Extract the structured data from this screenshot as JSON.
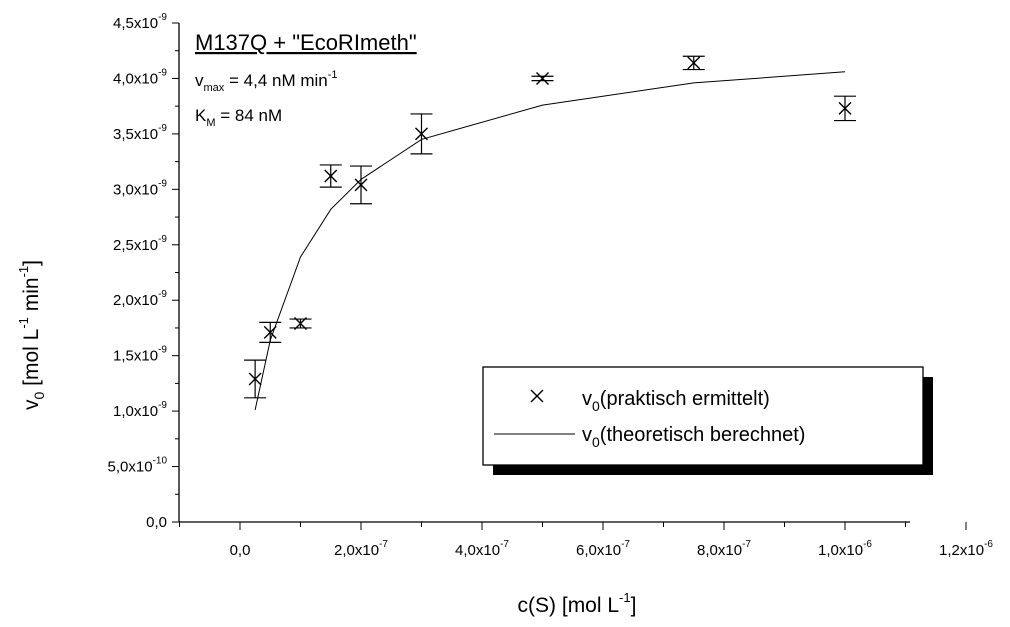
{
  "chart_data": {
    "type": "scatter",
    "title": "",
    "xlabel": {
      "main": "c(S) [mol L",
      "sup": "-1",
      "end": "]"
    },
    "ylabel": {
      "main": "v",
      "sub": "0",
      "mid1": " [mol L",
      "sup1": "-1",
      "mid2": " min",
      "sup2": "-1",
      "end": "]"
    },
    "xlim": [
      -1e-07,
      1.2e-06
    ],
    "ylim": [
      0,
      4.5e-09
    ],
    "x_ticks": [
      {
        "value": 0,
        "mantissa": "0,0",
        "exp": ""
      },
      {
        "value": 2e-07,
        "mantissa": "2,0x10",
        "exp": "-7"
      },
      {
        "value": 4e-07,
        "mantissa": "4,0x10",
        "exp": "-7"
      },
      {
        "value": 6e-07,
        "mantissa": "6,0x10",
        "exp": "-7"
      },
      {
        "value": 8e-07,
        "mantissa": "8,0x10",
        "exp": "-7"
      },
      {
        "value": 1e-06,
        "mantissa": "1,0x10",
        "exp": "-6"
      },
      {
        "value": 1.2e-06,
        "mantissa": "1,2x10",
        "exp": "-6"
      }
    ],
    "y_ticks": [
      {
        "value": 0,
        "mantissa": "0,0",
        "exp": ""
      },
      {
        "value": 5e-10,
        "mantissa": "5,0x10",
        "exp": "-10"
      },
      {
        "value": 1e-09,
        "mantissa": "1,0x10",
        "exp": "-9"
      },
      {
        "value": 1.5e-09,
        "mantissa": "1,5x10",
        "exp": "-9"
      },
      {
        "value": 2e-09,
        "mantissa": "2,0x10",
        "exp": "-9"
      },
      {
        "value": 2.5e-09,
        "mantissa": "2,5x10",
        "exp": "-9"
      },
      {
        "value": 3e-09,
        "mantissa": "3,0x10",
        "exp": "-9"
      },
      {
        "value": 3.5e-09,
        "mantissa": "3,5x10",
        "exp": "-9"
      },
      {
        "value": 4e-09,
        "mantissa": "4,0x10",
        "exp": "-9"
      },
      {
        "value": 4.5e-09,
        "mantissa": "4,5x10",
        "exp": "-9"
      }
    ],
    "series": [
      {
        "name": {
          "main": "v",
          "sub": "0",
          "end": "(praktisch ermittelt)"
        },
        "type": "scatter",
        "marker": "×",
        "color": "#000000",
        "points": [
          {
            "x": 2.5e-08,
            "y": 1.29e-09,
            "err": 1.7e-10
          },
          {
            "x": 5e-08,
            "y": 1.71e-09,
            "err": 9e-11
          },
          {
            "x": 1e-07,
            "y": 1.79e-09,
            "err": 4e-11
          },
          {
            "x": 1.5e-07,
            "y": 3.12e-09,
            "err": 1e-10
          },
          {
            "x": 2e-07,
            "y": 3.04e-09,
            "err": 1.7e-10
          },
          {
            "x": 3e-07,
            "y": 3.5e-09,
            "err": 1.8e-10
          },
          {
            "x": 5e-07,
            "y": 4e-09,
            "err": 2e-11
          },
          {
            "x": 7.5e-07,
            "y": 4.14e-09,
            "err": 6e-11
          },
          {
            "x": 1e-06,
            "y": 3.73e-09,
            "err": 1.1e-10
          }
        ]
      },
      {
        "name": {
          "main": "v",
          "sub": "0",
          "end": "(theoretisch berechnet)"
        },
        "type": "line",
        "color": "#000000",
        "x": [
          2.5e-08,
          5e-08,
          1e-07,
          1.5e-07,
          2e-07,
          3e-07,
          5e-07,
          7.5e-07,
          1e-06
        ],
        "y": [
          1.01e-09,
          1.64e-09,
          2.39e-09,
          2.82e-09,
          3.09e-09,
          3.45e-09,
          3.76e-09,
          3.96e-09,
          4.06e-09
        ]
      }
    ],
    "annotation": {
      "title": "M137Q + \"EcoRImeth\"",
      "vmax": {
        "main": "v",
        "sub": "max",
        "text": " = 4,4 nM min",
        "sup": "-1"
      },
      "km": {
        "main": "K",
        "sub": "M",
        "text": " = 84 nM"
      }
    },
    "legend_position": "bottom-right",
    "grid": false
  }
}
